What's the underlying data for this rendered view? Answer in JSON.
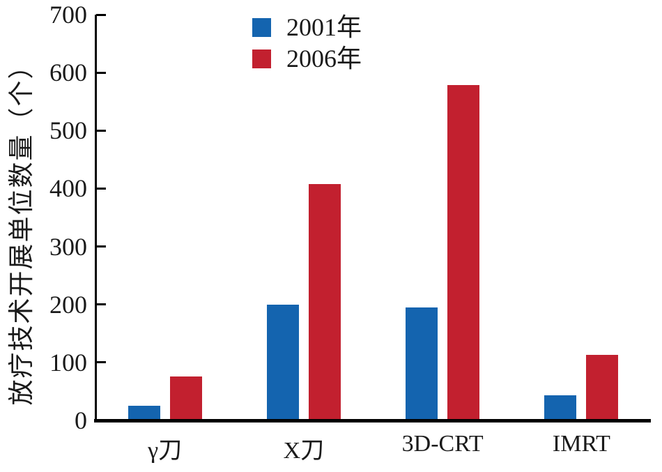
{
  "chart_data": {
    "type": "bar",
    "title": "",
    "categories": [
      "γ刀",
      "X刀",
      "3D-CRT",
      "IMRT"
    ],
    "series": [
      {
        "name": "2001年",
        "color": "#1464af",
        "values": [
          25,
          200,
          195,
          43
        ]
      },
      {
        "name": "2006年",
        "color": "#c2202f",
        "values": [
          76,
          408,
          579,
          113
        ]
      }
    ],
    "xlabel": "",
    "ylabel": "放疗技术开展单位数量（个）",
    "ylim": [
      0,
      700
    ],
    "yticks": [
      0,
      100,
      200,
      300,
      400,
      500,
      600,
      700
    ],
    "grid": false,
    "legend_position": "upper-left-inside",
    "axis_color": "#000000",
    "background_color": "#ffffff"
  }
}
